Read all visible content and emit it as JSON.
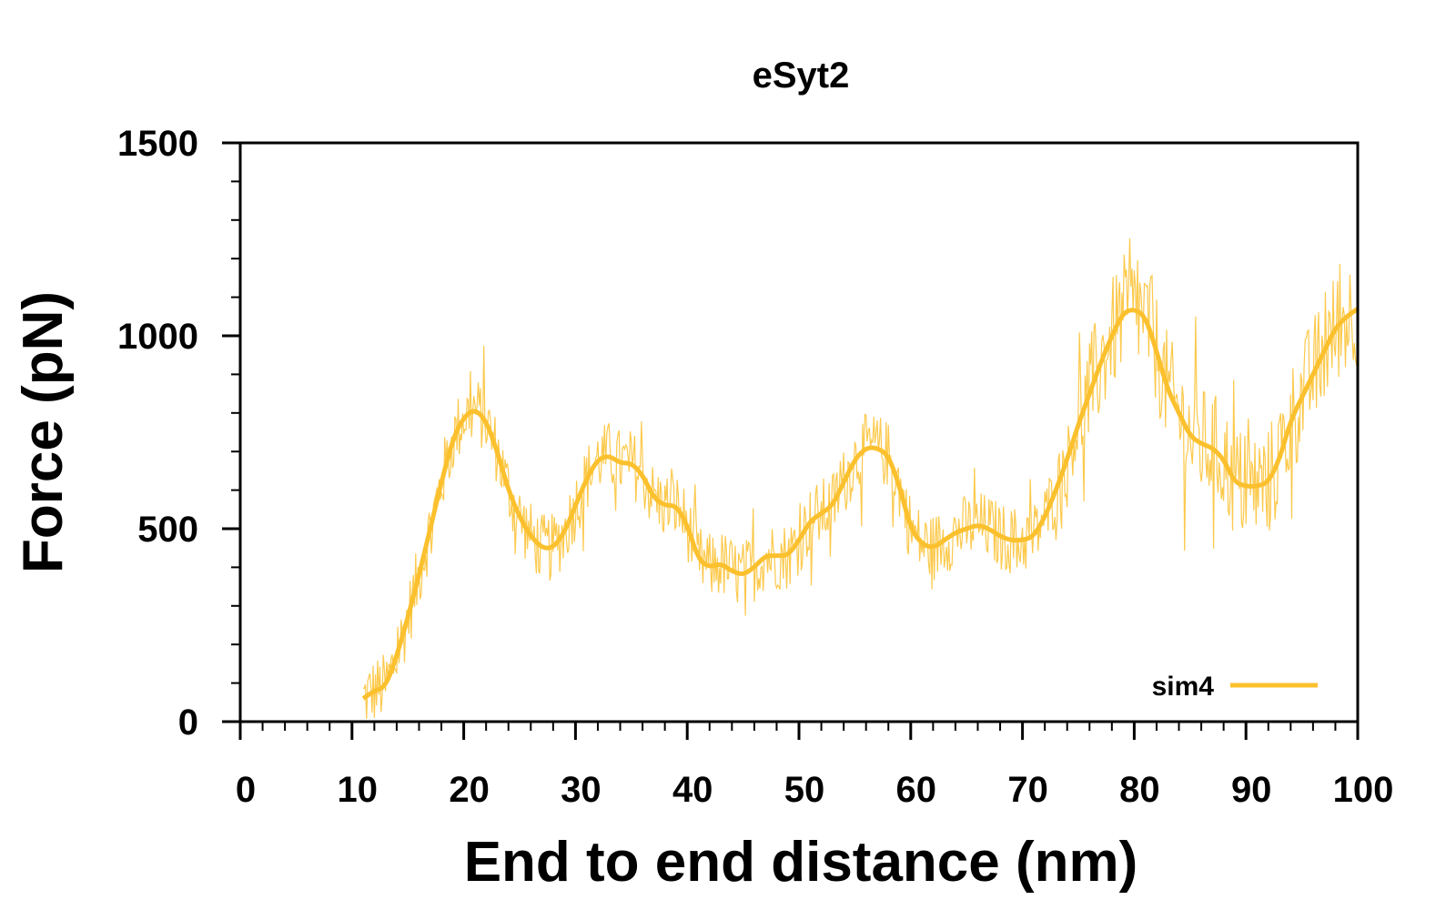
{
  "chart_data": {
    "type": "line",
    "title": "eSyt2",
    "xlabel": "End to end distance (nm)",
    "ylabel": "Force (pN)",
    "xlim": [
      0,
      100
    ],
    "ylim": [
      0,
      1500
    ],
    "xticks": [
      0,
      10,
      20,
      30,
      40,
      50,
      60,
      70,
      80,
      90,
      100
    ],
    "yticks": [
      0,
      500,
      1000,
      1500
    ],
    "x_minor_step": 2,
    "y_minor_step": 100,
    "grid": false,
    "legend_position": "bottom-right",
    "series": [
      {
        "name": "sim4",
        "color": "#FBC02D",
        "smoothed": {
          "x": [
            11,
            12,
            13,
            14,
            15,
            16,
            17,
            18,
            19,
            20,
            21,
            22,
            23,
            24,
            25,
            26,
            27,
            28,
            29,
            30,
            31,
            32,
            33,
            34,
            35,
            36,
            37,
            38,
            39,
            40,
            41,
            42,
            43,
            44,
            45,
            46,
            47,
            48,
            49,
            50,
            51,
            52,
            53,
            54,
            55,
            56,
            57,
            58,
            59,
            60,
            61,
            62,
            63,
            64,
            65,
            66,
            67,
            68,
            69,
            70,
            71,
            72,
            73,
            74,
            75,
            76,
            77,
            78,
            79,
            80,
            81,
            82,
            83,
            84,
            85,
            86,
            87,
            88,
            89,
            90,
            91,
            92,
            93,
            94,
            95,
            96,
            97,
            98,
            99,
            100
          ],
          "y": [
            60,
            80,
            90,
            170,
            270,
            380,
            500,
            620,
            730,
            790,
            810,
            780,
            700,
            600,
            530,
            480,
            450,
            450,
            490,
            560,
            630,
            680,
            690,
            670,
            670,
            640,
            580,
            560,
            560,
            510,
            420,
            400,
            410,
            390,
            380,
            400,
            430,
            430,
            430,
            470,
            520,
            540,
            560,
            620,
            680,
            710,
            710,
            690,
            610,
            500,
            460,
            450,
            470,
            490,
            500,
            510,
            500,
            480,
            470,
            470,
            480,
            530,
            600,
            680,
            770,
            850,
            930,
            1000,
            1060,
            1070,
            1050,
            960,
            860,
            800,
            740,
            720,
            710,
            680,
            620,
            610,
            610,
            620,
            680,
            780,
            840,
            900,
            960,
            1020,
            1050,
            1070
          ]
        },
        "raw_y_range_note": ""
      }
    ]
  }
}
